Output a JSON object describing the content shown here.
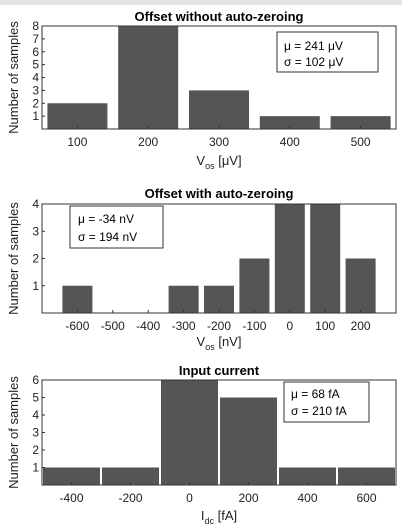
{
  "chart_data": [
    {
      "type": "bar",
      "title": "Offset without auto-zeroing",
      "xlabel_main": "V",
      "xlabel_sub": "os",
      "xlabel_unit": " [μV]",
      "ylabel": "Number of samples",
      "x": [
        100,
        200,
        300,
        400,
        500
      ],
      "values": [
        2,
        8,
        3,
        1,
        1
      ],
      "xticks": [
        "100",
        "200",
        "300",
        "400",
        "500"
      ],
      "xlim": [
        50,
        550
      ],
      "ylim": [
        0,
        8
      ],
      "yticks": [
        "1",
        "2",
        "3",
        "4",
        "5",
        "6",
        "7",
        "8"
      ],
      "stats": [
        "μ = 241 μV",
        "σ = 102 μV"
      ],
      "legend_position": "top-right",
      "bar_color": "#555555"
    },
    {
      "type": "bar",
      "title": "Offset with auto-zeroing",
      "xlabel_main": "V",
      "xlabel_sub": "os",
      "xlabel_unit": " [nV]",
      "ylabel": "Number of samples",
      "x": [
        -600,
        -500,
        -400,
        -300,
        -200,
        -100,
        0,
        100,
        200
      ],
      "values": [
        1,
        0,
        0,
        1,
        1,
        2,
        4,
        4,
        2
      ],
      "xticks": [
        "-600",
        "-500",
        "-400",
        "-300",
        "-200",
        "-100",
        "0",
        "100",
        "200"
      ],
      "xlim": [
        -700,
        300
      ],
      "ylim": [
        0,
        4
      ],
      "yticks": [
        "1",
        "2",
        "3",
        "4"
      ],
      "stats": [
        "μ = -34 nV",
        "σ = 194 nV"
      ],
      "legend_position": "top-left",
      "bar_color": "#555555"
    },
    {
      "type": "bar",
      "title": "Input current",
      "xlabel_main": "I",
      "xlabel_sub": "dc",
      "xlabel_unit": " [fA]",
      "ylabel": "Number of samples",
      "x": [
        -400,
        -200,
        0,
        200,
        400,
        600
      ],
      "values": [
        1,
        1,
        6,
        5,
        1,
        1
      ],
      "xticks": [
        "-400",
        "-200",
        "0",
        "200",
        "400",
        "600"
      ],
      "xlim": [
        -500,
        700
      ],
      "ylim": [
        0,
        6
      ],
      "yticks": [
        "1",
        "2",
        "3",
        "4",
        "5",
        "6"
      ],
      "stats": [
        "μ = 68 fA",
        "σ = 210 fA"
      ],
      "legend_position": "top-right",
      "bar_color": "#555555"
    }
  ]
}
